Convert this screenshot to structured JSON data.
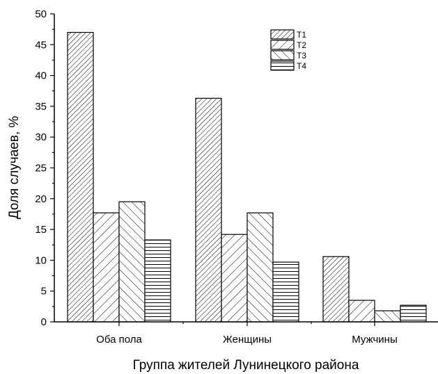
{
  "chart_data": {
    "type": "bar",
    "title": "",
    "xlabel": "Группа жителей Лунинецкого района",
    "ylabel": "Доля случаев, %",
    "categories": [
      "Оба пола",
      "Женщины",
      "Мужчины"
    ],
    "series": [
      {
        "name": "T1",
        "values": [
          47.0,
          36.3,
          10.6
        ],
        "pattern": "diag-right-dense"
      },
      {
        "name": "T2",
        "values": [
          17.7,
          14.2,
          3.5
        ],
        "pattern": "diag-right"
      },
      {
        "name": "T3",
        "values": [
          19.5,
          17.7,
          1.8
        ],
        "pattern": "diag-left"
      },
      {
        "name": "T4",
        "values": [
          13.3,
          9.7,
          2.7
        ],
        "pattern": "horizontal"
      }
    ],
    "ylim": [
      0,
      50
    ],
    "yticks": [
      0,
      5,
      10,
      15,
      20,
      25,
      30,
      35,
      40,
      45,
      50
    ],
    "grid": false,
    "legend_position": "top-right"
  }
}
